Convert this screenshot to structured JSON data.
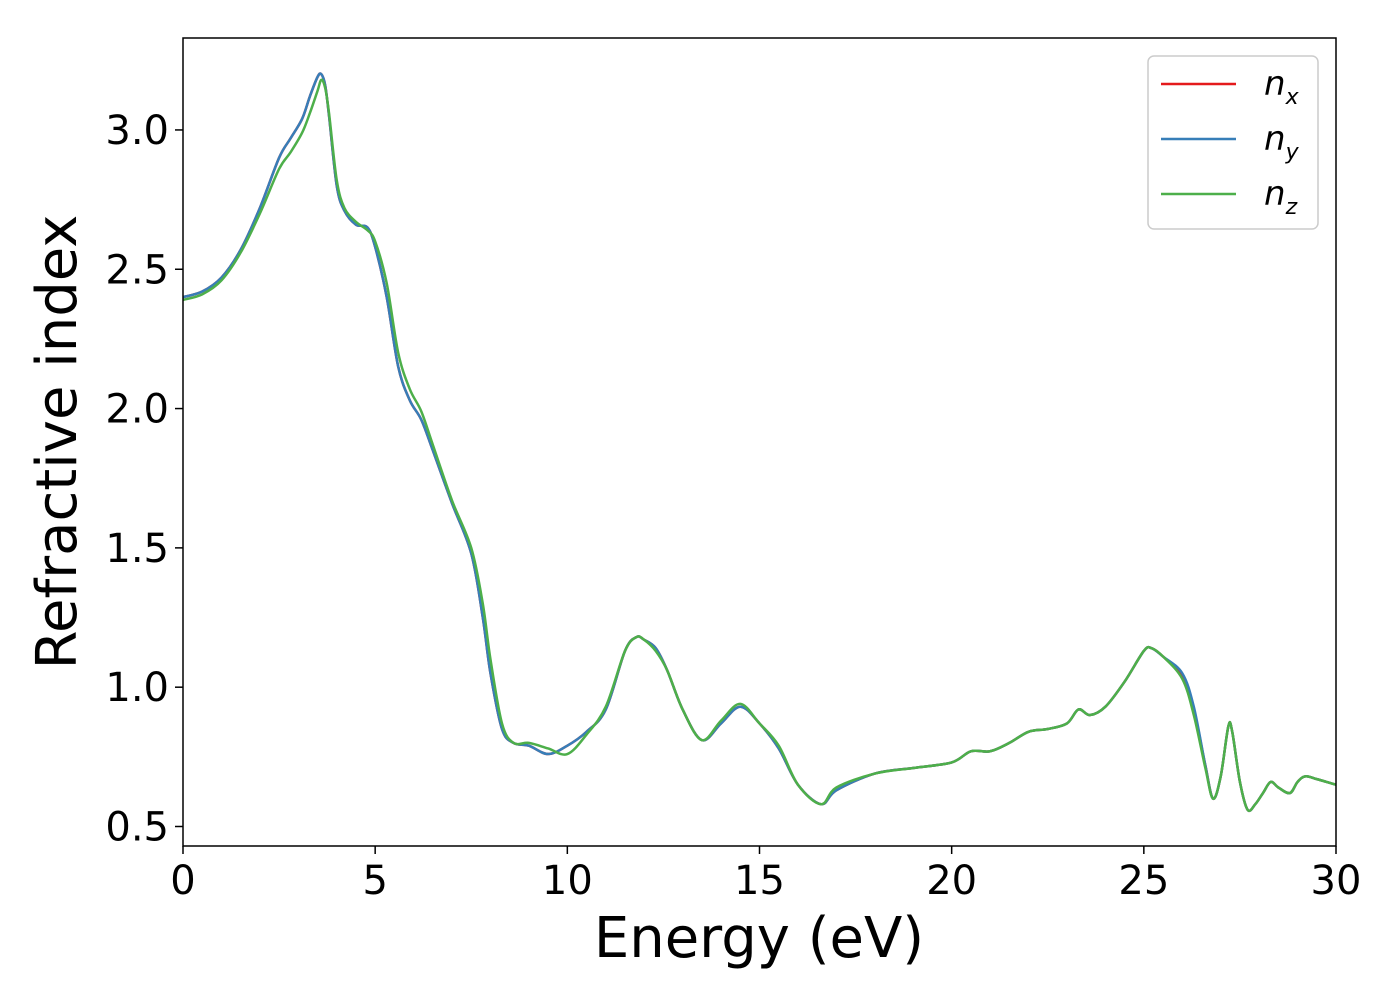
{
  "chart_data": {
    "type": "line",
    "xlabel": "Energy (eV)",
    "ylabel": "Refractive index",
    "xlim": [
      0,
      30
    ],
    "ylim": [
      0.43,
      3.33
    ],
    "xticks": [
      0,
      5,
      10,
      15,
      20,
      25,
      30
    ],
    "xtick_labels": [
      "0",
      "5",
      "10",
      "15",
      "20",
      "25",
      "30"
    ],
    "yticks": [
      0.5,
      1.0,
      1.5,
      2.0,
      2.5,
      3.0
    ],
    "ytick_labels": [
      "0.5",
      "1.0",
      "1.5",
      "2.0",
      "2.5",
      "3.0"
    ],
    "grid": false,
    "legend": "top-right",
    "series": [
      {
        "name": "n",
        "subscript": "x",
        "color": "#e41a1c",
        "x": [
          0,
          0.5,
          1.0,
          1.5,
          2.0,
          2.5,
          2.8,
          3.1,
          3.3,
          3.5,
          3.6,
          3.7,
          3.8,
          4.0,
          4.2,
          4.5,
          4.8,
          5.0,
          5.3,
          5.6,
          5.9,
          6.2,
          6.5,
          7.0,
          7.5,
          7.8,
          8.0,
          8.3,
          8.6,
          9.0,
          9.5,
          10.0,
          10.5,
          11.0,
          11.5,
          11.8,
          12.0,
          12.3,
          12.6,
          13.0,
          13.5,
          14.0,
          14.5,
          15.0,
          15.5,
          16.0,
          16.6,
          17.0,
          18.0,
          19.0,
          20.0,
          20.5,
          21.0,
          21.5,
          22.0,
          22.5,
          23.0,
          23.3,
          23.6,
          24.0,
          24.5,
          25.0,
          25.2,
          25.5,
          26.0,
          26.3,
          26.6,
          26.8,
          27.0,
          27.2,
          27.3,
          27.5,
          27.7,
          27.9,
          28.1,
          28.3,
          28.5,
          28.8,
          29.0,
          29.2,
          29.5,
          30.0
        ],
        "y": [
          2.4,
          2.42,
          2.47,
          2.57,
          2.72,
          2.9,
          2.97,
          3.04,
          3.12,
          3.19,
          3.2,
          3.16,
          3.05,
          2.8,
          2.71,
          2.66,
          2.65,
          2.58,
          2.4,
          2.15,
          2.03,
          1.96,
          1.85,
          1.66,
          1.48,
          1.25,
          1.05,
          0.85,
          0.8,
          0.79,
          0.76,
          0.79,
          0.84,
          0.92,
          1.13,
          1.18,
          1.17,
          1.14,
          1.06,
          0.92,
          0.81,
          0.87,
          0.93,
          0.87,
          0.78,
          0.65,
          0.58,
          0.63,
          0.69,
          0.71,
          0.73,
          0.77,
          0.77,
          0.8,
          0.84,
          0.85,
          0.87,
          0.92,
          0.9,
          0.93,
          1.02,
          1.13,
          1.14,
          1.11,
          1.04,
          0.92,
          0.72,
          0.6,
          0.68,
          0.86,
          0.84,
          0.66,
          0.56,
          0.58,
          0.62,
          0.66,
          0.64,
          0.62,
          0.66,
          0.68,
          0.67,
          0.65
        ]
      },
      {
        "name": "n",
        "subscript": "y",
        "color": "#377eb8",
        "x": [
          0,
          0.5,
          1.0,
          1.5,
          2.0,
          2.5,
          2.8,
          3.1,
          3.3,
          3.5,
          3.6,
          3.7,
          3.8,
          4.0,
          4.2,
          4.5,
          4.8,
          5.0,
          5.3,
          5.6,
          5.9,
          6.2,
          6.5,
          7.0,
          7.5,
          7.8,
          8.0,
          8.3,
          8.6,
          9.0,
          9.5,
          10.0,
          10.5,
          11.0,
          11.5,
          11.8,
          12.0,
          12.3,
          12.6,
          13.0,
          13.5,
          14.0,
          14.5,
          15.0,
          15.5,
          16.0,
          16.6,
          17.0,
          18.0,
          19.0,
          20.0,
          20.5,
          21.0,
          21.5,
          22.0,
          22.5,
          23.0,
          23.3,
          23.6,
          24.0,
          24.5,
          25.0,
          25.2,
          25.5,
          26.0,
          26.3,
          26.6,
          26.8,
          27.0,
          27.2,
          27.3,
          27.5,
          27.7,
          27.9,
          28.1,
          28.3,
          28.5,
          28.8,
          29.0,
          29.2,
          29.5,
          30.0
        ],
        "y": [
          2.4,
          2.42,
          2.47,
          2.57,
          2.72,
          2.9,
          2.97,
          3.04,
          3.12,
          3.19,
          3.2,
          3.16,
          3.05,
          2.8,
          2.71,
          2.66,
          2.65,
          2.58,
          2.4,
          2.15,
          2.03,
          1.96,
          1.85,
          1.66,
          1.48,
          1.25,
          1.05,
          0.85,
          0.8,
          0.79,
          0.76,
          0.79,
          0.84,
          0.92,
          1.13,
          1.18,
          1.17,
          1.14,
          1.06,
          0.92,
          0.81,
          0.87,
          0.93,
          0.87,
          0.78,
          0.65,
          0.58,
          0.63,
          0.69,
          0.71,
          0.73,
          0.77,
          0.77,
          0.8,
          0.84,
          0.85,
          0.87,
          0.92,
          0.9,
          0.93,
          1.02,
          1.13,
          1.14,
          1.11,
          1.05,
          0.93,
          0.72,
          0.6,
          0.68,
          0.86,
          0.84,
          0.66,
          0.56,
          0.58,
          0.62,
          0.66,
          0.64,
          0.62,
          0.66,
          0.68,
          0.67,
          0.65
        ]
      },
      {
        "name": "n",
        "subscript": "z",
        "color": "#4daf4a",
        "x": [
          0,
          0.5,
          1.0,
          1.5,
          2.0,
          2.5,
          2.8,
          3.1,
          3.3,
          3.5,
          3.6,
          3.7,
          3.8,
          4.0,
          4.2,
          4.5,
          4.8,
          5.0,
          5.3,
          5.6,
          5.9,
          6.2,
          6.5,
          7.0,
          7.5,
          7.8,
          8.0,
          8.3,
          8.6,
          9.0,
          9.5,
          10.0,
          10.5,
          11.0,
          11.5,
          11.8,
          12.0,
          12.3,
          12.6,
          13.0,
          13.5,
          14.0,
          14.5,
          15.0,
          15.5,
          16.0,
          16.6,
          17.0,
          18.0,
          19.0,
          20.0,
          20.5,
          21.0,
          21.5,
          22.0,
          22.5,
          23.0,
          23.3,
          23.6,
          24.0,
          24.5,
          25.0,
          25.2,
          25.5,
          26.0,
          26.3,
          26.6,
          26.8,
          27.0,
          27.2,
          27.3,
          27.5,
          27.7,
          27.9,
          28.1,
          28.3,
          28.5,
          28.8,
          29.0,
          29.2,
          29.5,
          30.0
        ],
        "y": [
          2.39,
          2.41,
          2.46,
          2.56,
          2.7,
          2.86,
          2.92,
          2.99,
          3.06,
          3.14,
          3.18,
          3.15,
          3.06,
          2.82,
          2.72,
          2.67,
          2.64,
          2.6,
          2.45,
          2.2,
          2.07,
          1.99,
          1.87,
          1.67,
          1.5,
          1.3,
          1.1,
          0.87,
          0.8,
          0.8,
          0.78,
          0.76,
          0.83,
          0.93,
          1.13,
          1.18,
          1.17,
          1.13,
          1.06,
          0.92,
          0.81,
          0.88,
          0.94,
          0.87,
          0.79,
          0.65,
          0.58,
          0.64,
          0.69,
          0.71,
          0.73,
          0.77,
          0.77,
          0.8,
          0.84,
          0.85,
          0.87,
          0.92,
          0.9,
          0.93,
          1.02,
          1.13,
          1.14,
          1.11,
          1.03,
          0.9,
          0.71,
          0.6,
          0.68,
          0.86,
          0.84,
          0.66,
          0.56,
          0.58,
          0.62,
          0.66,
          0.64,
          0.62,
          0.66,
          0.68,
          0.67,
          0.65
        ]
      }
    ]
  }
}
